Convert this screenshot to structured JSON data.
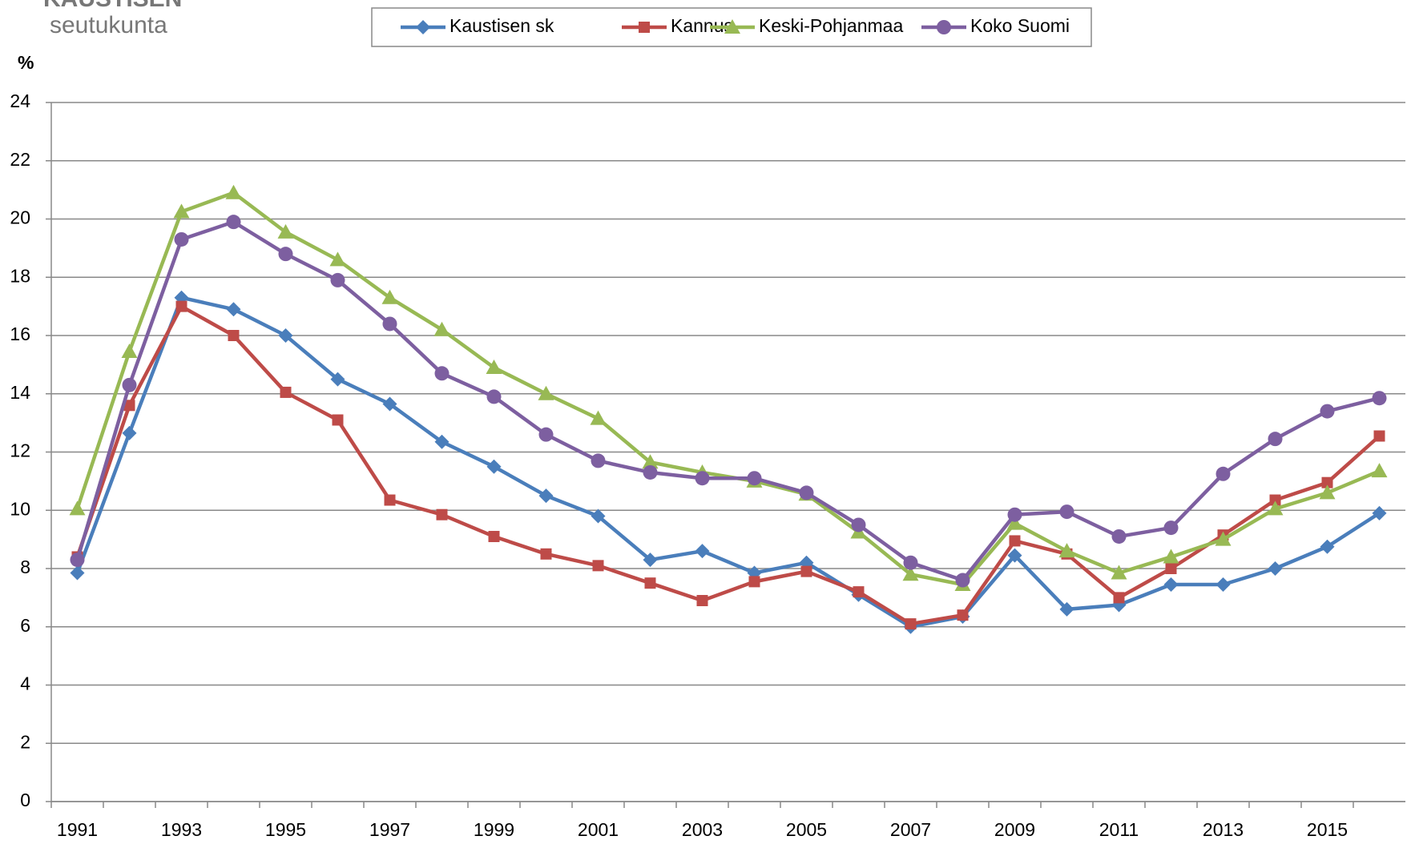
{
  "logo": {
    "line1": "KAUSTISEN",
    "line2": "seutukunta"
  },
  "chart_data": {
    "type": "line",
    "ylabel": "%",
    "categories": [
      "1991",
      null,
      "1993",
      null,
      "1995",
      null,
      "1997",
      null,
      "1999",
      null,
      "2001",
      null,
      "2003",
      null,
      "2005",
      null,
      "2007",
      null,
      "2009",
      null,
      "2011",
      null,
      "2013",
      null,
      "2015",
      null
    ],
    "series": [
      {
        "name": "Kaustisen sk",
        "color": "#4a7ebb",
        "marker": "diamond",
        "values": [
          7.85,
          12.65,
          17.3,
          16.9,
          16.0,
          14.5,
          13.65,
          12.35,
          11.5,
          10.5,
          9.8,
          8.3,
          8.6,
          7.85,
          8.2,
          7.1,
          6.0,
          6.35,
          8.45,
          6.6,
          6.75,
          7.45,
          7.45,
          8.0,
          8.75,
          9.9
        ]
      },
      {
        "name": "Kannus",
        "color": "#be4b48",
        "marker": "square",
        "values": [
          8.4,
          13.6,
          17.0,
          16.0,
          14.05,
          13.1,
          10.35,
          9.85,
          9.1,
          8.5,
          8.1,
          7.5,
          6.9,
          7.55,
          7.9,
          7.2,
          6.1,
          6.4,
          8.95,
          8.5,
          7.0,
          8.0,
          9.15,
          10.35,
          10.95,
          12.55
        ]
      },
      {
        "name": "Keski-Pohjanmaa",
        "color": "#98b954",
        "marker": "triangle",
        "values": [
          10.05,
          15.45,
          20.25,
          20.9,
          19.55,
          18.6,
          17.3,
          16.2,
          14.9,
          14.0,
          13.15,
          11.65,
          11.3,
          11.0,
          10.55,
          9.25,
          7.8,
          7.45,
          9.55,
          8.6,
          7.85,
          8.4,
          9.0,
          10.05,
          10.6,
          11.35
        ]
      },
      {
        "name": "Koko Suomi",
        "color": "#7d5fa0",
        "marker": "circle",
        "values": [
          8.3,
          14.3,
          19.3,
          19.9,
          18.8,
          17.9,
          16.4,
          14.7,
          13.9,
          12.6,
          11.7,
          11.3,
          11.1,
          11.1,
          10.6,
          9.5,
          8.2,
          7.6,
          9.85,
          9.95,
          9.1,
          9.4,
          11.25,
          12.45,
          13.4,
          13.85
        ]
      }
    ],
    "ylim": [
      0,
      24
    ],
    "yticks": [
      0,
      2,
      4,
      6,
      8,
      10,
      12,
      14,
      16,
      18,
      20,
      22,
      24
    ],
    "grid": true,
    "legend": "top"
  }
}
